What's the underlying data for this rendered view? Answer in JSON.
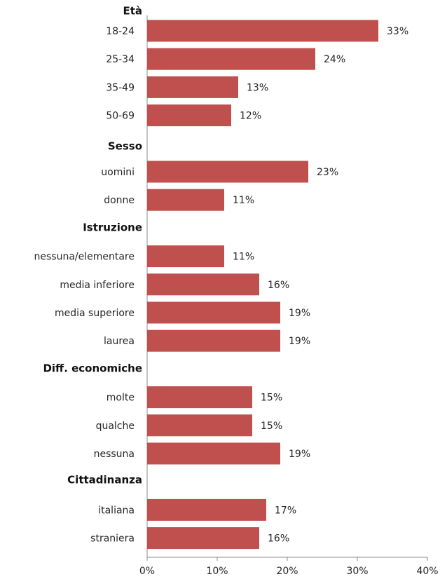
{
  "chart_data": {
    "type": "bar",
    "orientation": "horizontal",
    "title": "",
    "xlabel": "",
    "ylabel": "",
    "xlim": [
      0,
      40
    ],
    "x_ticks": [
      "0%",
      "10%",
      "20%",
      "30%",
      "40%"
    ],
    "grid": false,
    "bar_color": "#C0504D",
    "groups": [
      {
        "name": "Età",
        "categories": [
          "18-24",
          "25-34",
          "35-49",
          "50-69"
        ],
        "values": [
          33,
          24,
          13,
          12
        ],
        "labels": [
          "33%",
          "24%",
          "13%",
          "12%"
        ]
      },
      {
        "name": "Sesso",
        "categories": [
          "uomini",
          "donne"
        ],
        "values": [
          23,
          11
        ],
        "labels": [
          "23%",
          "11%"
        ]
      },
      {
        "name": "Istruzione",
        "categories": [
          "nessuna/elementare",
          "media inferiore",
          "media superiore",
          "laurea"
        ],
        "values": [
          11,
          16,
          19,
          19
        ],
        "labels": [
          "11%",
          "16%",
          "19%",
          "19%"
        ]
      },
      {
        "name": "Diff. economiche",
        "categories": [
          "molte",
          "qualche",
          "nessuna"
        ],
        "values": [
          15,
          15,
          19
        ],
        "labels": [
          "15%",
          "15%",
          "19%"
        ]
      },
      {
        "name": "Cittadinanza",
        "categories": [
          "italiana",
          "straniera"
        ],
        "values": [
          17,
          16
        ],
        "labels": [
          "17%",
          "16%"
        ]
      }
    ]
  }
}
